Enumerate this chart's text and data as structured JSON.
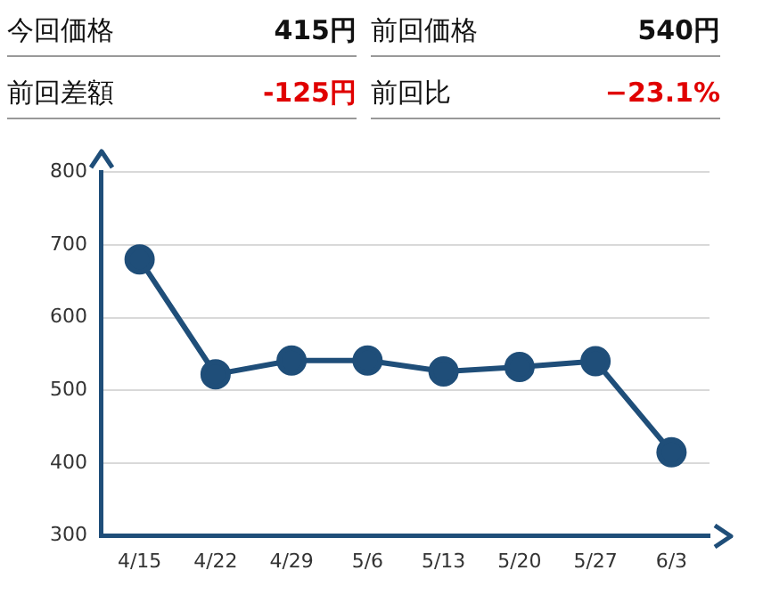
{
  "chart_data": {
    "type": "line",
    "categories": [
      "4/15",
      "4/22",
      "4/29",
      "5/6",
      "5/13",
      "5/20",
      "5/27",
      "6/3"
    ],
    "series": [
      {
        "color": "#1f4e79",
        "values": [
          680,
          522,
          541,
          541,
          526,
          532,
          540,
          415
        ]
      }
    ],
    "ylim": [
      300,
      800
    ],
    "yticks": [
      300,
      400,
      500,
      600,
      700,
      800
    ],
    "grid": "y",
    "marker": "circle",
    "line_style": "solid",
    "legend": false,
    "annotations": [
      "今回価格",
      "415円",
      "前回価格",
      "540円",
      "前回差額",
      "-125円",
      "前回比",
      "−23.1%"
    ]
  }
}
